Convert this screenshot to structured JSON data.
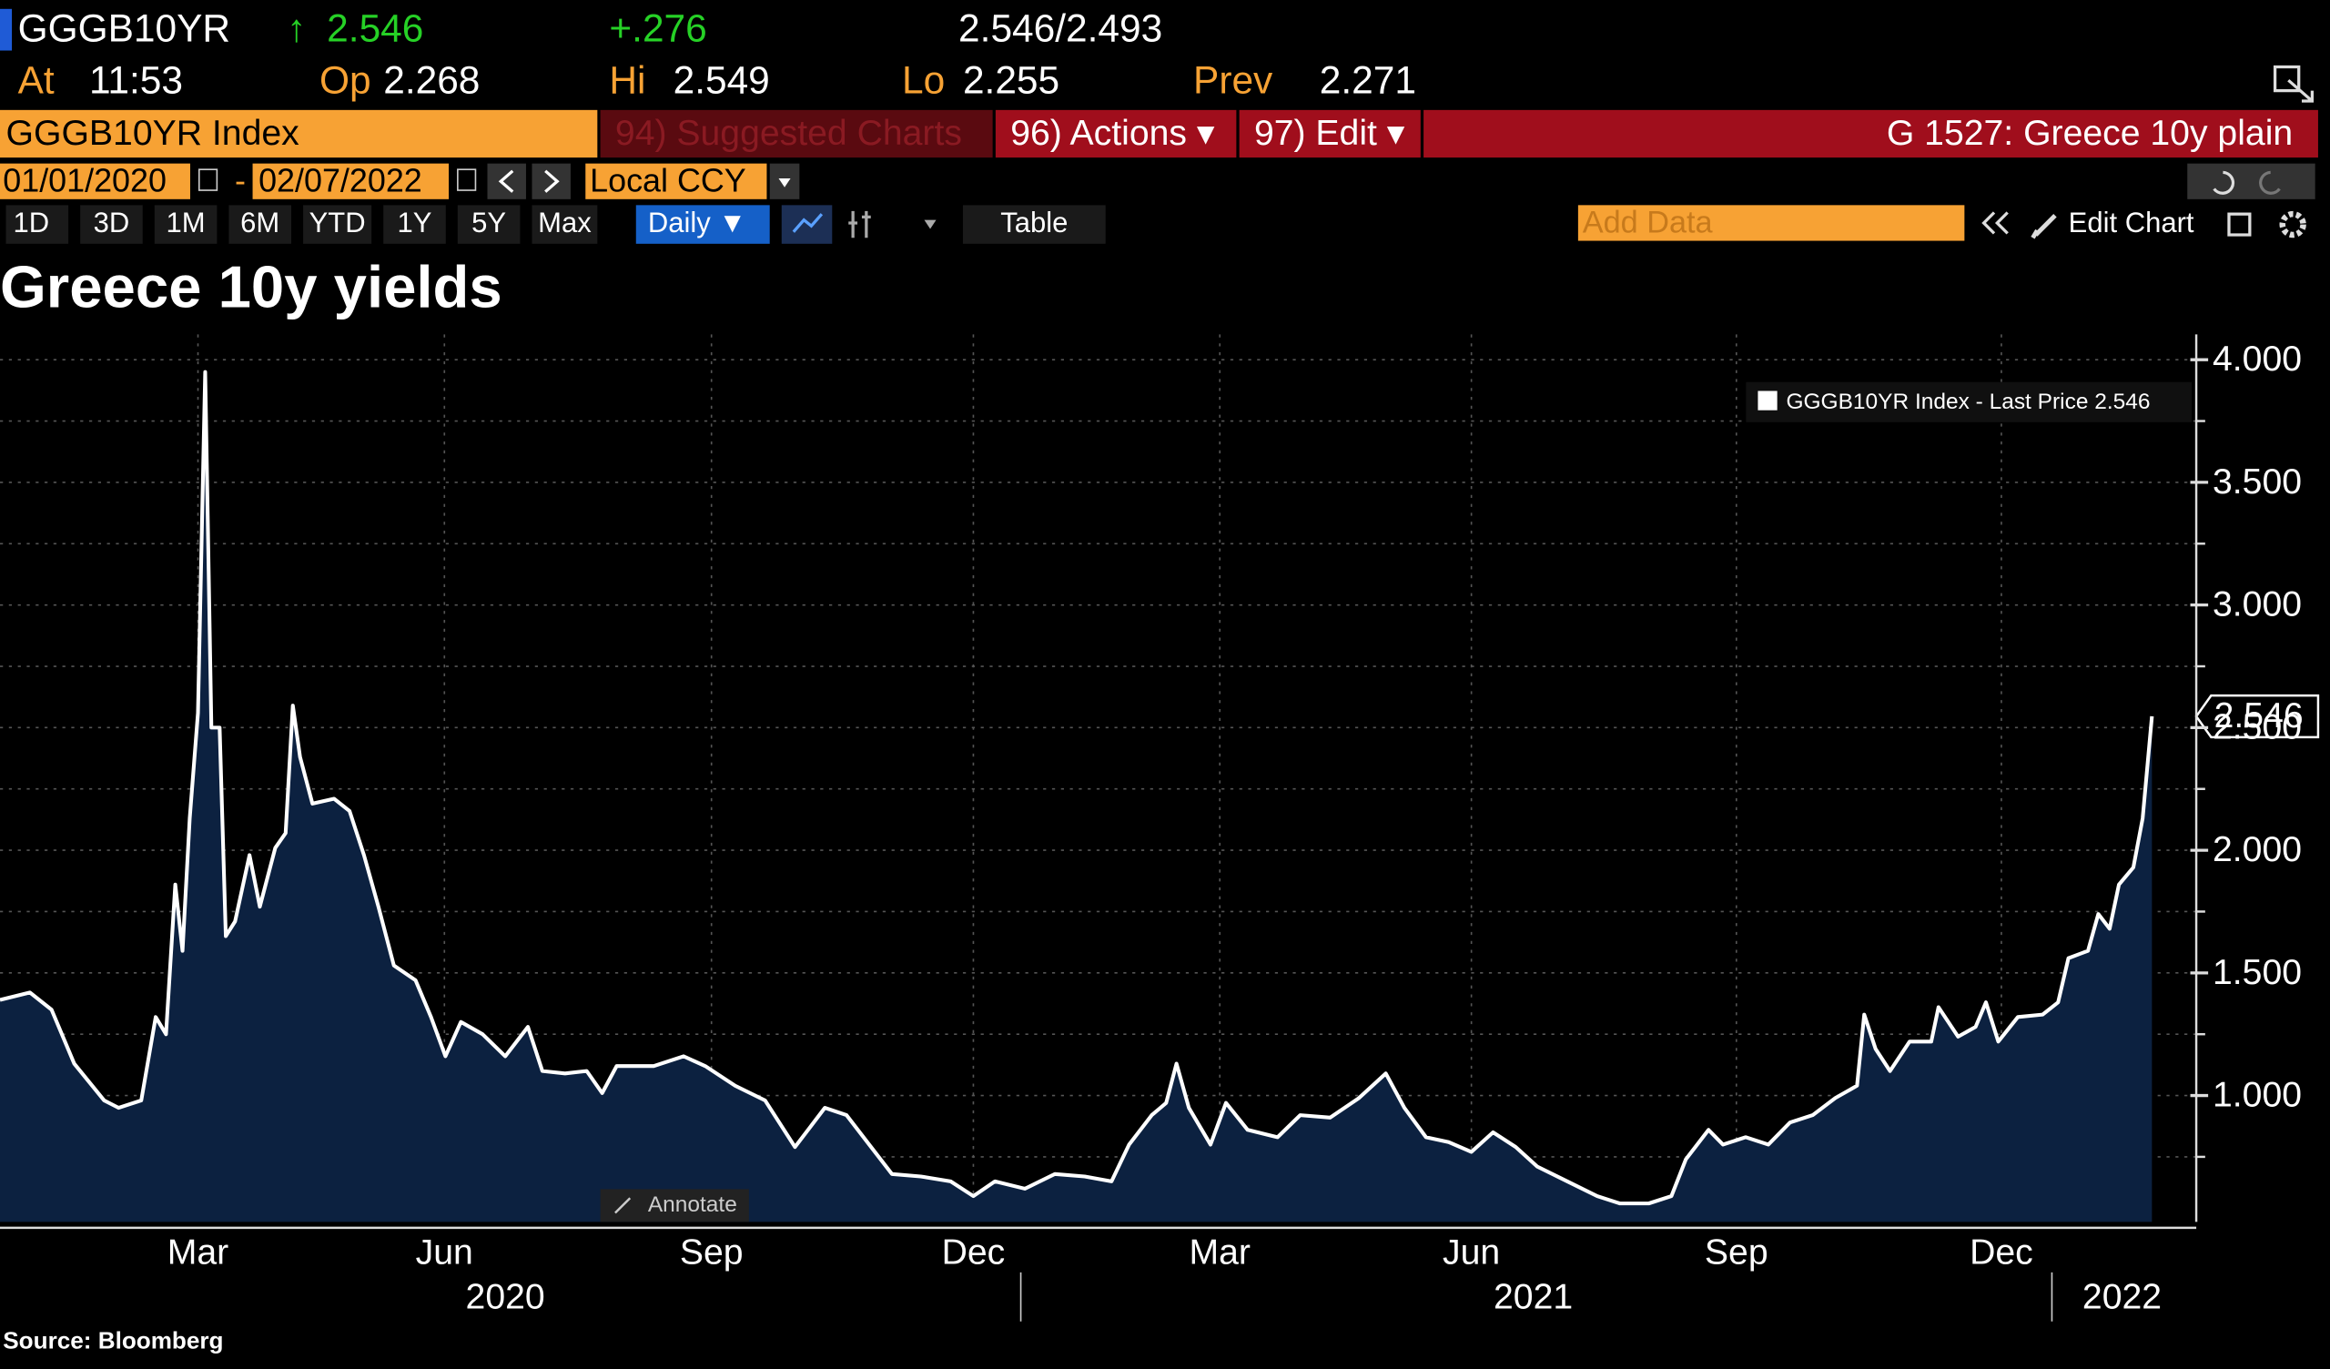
{
  "terminal": {
    "symbol": "GGGB10YR",
    "arrow": "↑",
    "last": "2.546",
    "change": "+.276",
    "bid_ask": "2.546/2.493",
    "stats": [
      {
        "label": "At",
        "value": "11:53"
      },
      {
        "label": "Op",
        "value": "2.268"
      },
      {
        "label": "Hi",
        "value": "2.549"
      },
      {
        "label": "Lo",
        "value": "2.255"
      },
      {
        "label": "Prev",
        "value": "2.271"
      }
    ],
    "security": "GGGB10YR Index",
    "menu": [
      "94) Suggested Charts",
      "96) Actions ▾",
      "97) Edit ▾"
    ],
    "chart_id": "G 1527: Greece 10y plain",
    "start_date": "01/01/2020",
    "date_sep": "-",
    "end_date": "02/07/2022",
    "currency": "Local CCY",
    "periods": [
      "1D",
      "3D",
      "1M",
      "6M",
      "YTD",
      "1Y",
      "5Y",
      "Max"
    ],
    "frequency": "Daily ▼",
    "table": "Table",
    "add_data": "Add Data",
    "edit_chart": "Edit Chart",
    "annotate": "Annotate",
    "source": "Source: Bloomberg"
  },
  "chart_data": {
    "type": "line",
    "title": "Greece 10y yields",
    "x": [
      2020.01,
      2020.039,
      2020.06,
      2020.082,
      2020.111,
      2020.125,
      2020.147,
      2020.161,
      2020.171,
      2020.18,
      2020.187,
      2020.194,
      2020.202,
      2020.209,
      2020.215,
      2020.223,
      2020.229,
      2020.238,
      2020.252,
      2020.262,
      2020.277,
      2020.287,
      2020.294,
      2020.301,
      2020.313,
      2020.334,
      2020.349,
      2020.363,
      2020.377,
      2020.392,
      2020.413,
      2020.428,
      2020.442,
      2020.457,
      2020.478,
      2020.5,
      2020.522,
      2020.536,
      2020.558,
      2020.579,
      2020.594,
      2020.608,
      2020.644,
      2020.673,
      2020.694,
      2020.723,
      2020.752,
      2020.781,
      2020.81,
      2020.831,
      2020.853,
      2020.875,
      2020.903,
      2020.932,
      2020.954,
      2020.975,
      2021.004,
      2021.033,
      2021.062,
      2021.088,
      2021.105,
      2021.127,
      2021.141,
      2021.151,
      2021.163,
      2021.184,
      2021.199,
      2021.22,
      2021.249,
      2021.271,
      2021.3,
      2021.328,
      2021.354,
      2021.372,
      2021.393,
      2021.415,
      2021.437,
      2021.458,
      2021.48,
      2021.501,
      2021.53,
      2021.559,
      2021.581,
      2021.609,
      2021.631,
      2021.645,
      2021.667,
      2021.681,
      2021.703,
      2021.725,
      2021.746,
      2021.768,
      2021.79,
      2021.811,
      2021.818,
      2021.829,
      2021.843,
      2021.862,
      2021.883,
      2021.89,
      2021.909,
      2021.926,
      2021.936,
      2021.948,
      2021.967,
      2021.991,
      2022.006,
      2022.016,
      2022.035,
      2022.045,
      2022.056,
      2022.065,
      2022.079,
      2022.088,
      2022.097
    ],
    "series": [
      {
        "name": "GGGB10YR Index - Last Price 2.546",
        "color": "#ffffff",
        "fill": "#0c2140",
        "values": [
          1.39,
          1.42,
          1.35,
          1.13,
          0.98,
          0.95,
          0.98,
          1.32,
          1.25,
          1.86,
          1.59,
          2.13,
          2.56,
          3.95,
          2.5,
          2.5,
          1.65,
          1.71,
          1.98,
          1.77,
          2.01,
          2.07,
          2.59,
          2.38,
          2.19,
          2.21,
          2.16,
          1.98,
          1.77,
          1.53,
          1.47,
          1.32,
          1.16,
          1.3,
          1.25,
          1.16,
          1.28,
          1.1,
          1.09,
          1.1,
          1.01,
          1.12,
          1.12,
          1.16,
          1.12,
          1.04,
          0.98,
          0.79,
          0.95,
          0.92,
          0.8,
          0.68,
          0.67,
          0.65,
          0.59,
          0.65,
          0.62,
          0.68,
          0.67,
          0.65,
          0.8,
          0.92,
          0.97,
          1.13,
          0.95,
          0.8,
          0.97,
          0.86,
          0.83,
          0.92,
          0.91,
          0.99,
          1.09,
          0.95,
          0.83,
          0.81,
          0.77,
          0.85,
          0.79,
          0.71,
          0.65,
          0.59,
          0.56,
          0.56,
          0.59,
          0.74,
          0.86,
          0.8,
          0.83,
          0.8,
          0.89,
          0.92,
          0.99,
          1.04,
          1.33,
          1.19,
          1.1,
          1.22,
          1.22,
          1.36,
          1.24,
          1.28,
          1.38,
          1.22,
          1.32,
          1.33,
          1.38,
          1.56,
          1.59,
          1.74,
          1.68,
          1.86,
          1.93,
          2.13,
          2.546
        ],
        "last_value": 2.546,
        "last_label": "2.546"
      }
    ],
    "xlim": [
      2020.01,
      2022.14
    ],
    "xticks": [
      {
        "value": 2020.202,
        "label": "Mar"
      },
      {
        "value": 2020.441,
        "label": "Jun"
      },
      {
        "value": 2020.7,
        "label": "Sep"
      },
      {
        "value": 2020.954,
        "label": "Dec"
      },
      {
        "value": 2021.193,
        "label": "Mar"
      },
      {
        "value": 2021.437,
        "label": "Jun"
      },
      {
        "value": 2021.694,
        "label": "Sep"
      },
      {
        "value": 2021.951,
        "label": "Dec"
      }
    ],
    "year_ticks": [
      {
        "value": 2020.5,
        "label": "2020"
      },
      {
        "value": 2021.497,
        "label": "2021"
      },
      {
        "value": 2022.068,
        "label": "2022"
      }
    ],
    "year_dividers": [
      2021.0,
      2022.0
    ],
    "ylim": [
      0.485,
      4.103
    ],
    "yticks": [
      {
        "value": 1,
        "label": "1.000"
      },
      {
        "value": 1.5,
        "label": "1.500"
      },
      {
        "value": 2,
        "label": "2.000"
      },
      {
        "value": 2.5,
        "label": "2.500"
      },
      {
        "value": 3,
        "label": "3.000"
      },
      {
        "value": 3.5,
        "label": "3.500"
      },
      {
        "value": 4,
        "label": "4.000"
      }
    ],
    "minor_yticks": [
      0.75,
      1.25,
      1.75,
      2.25,
      2.75,
      3.25,
      3.75
    ],
    "grid": true,
    "legend": "upper right"
  }
}
